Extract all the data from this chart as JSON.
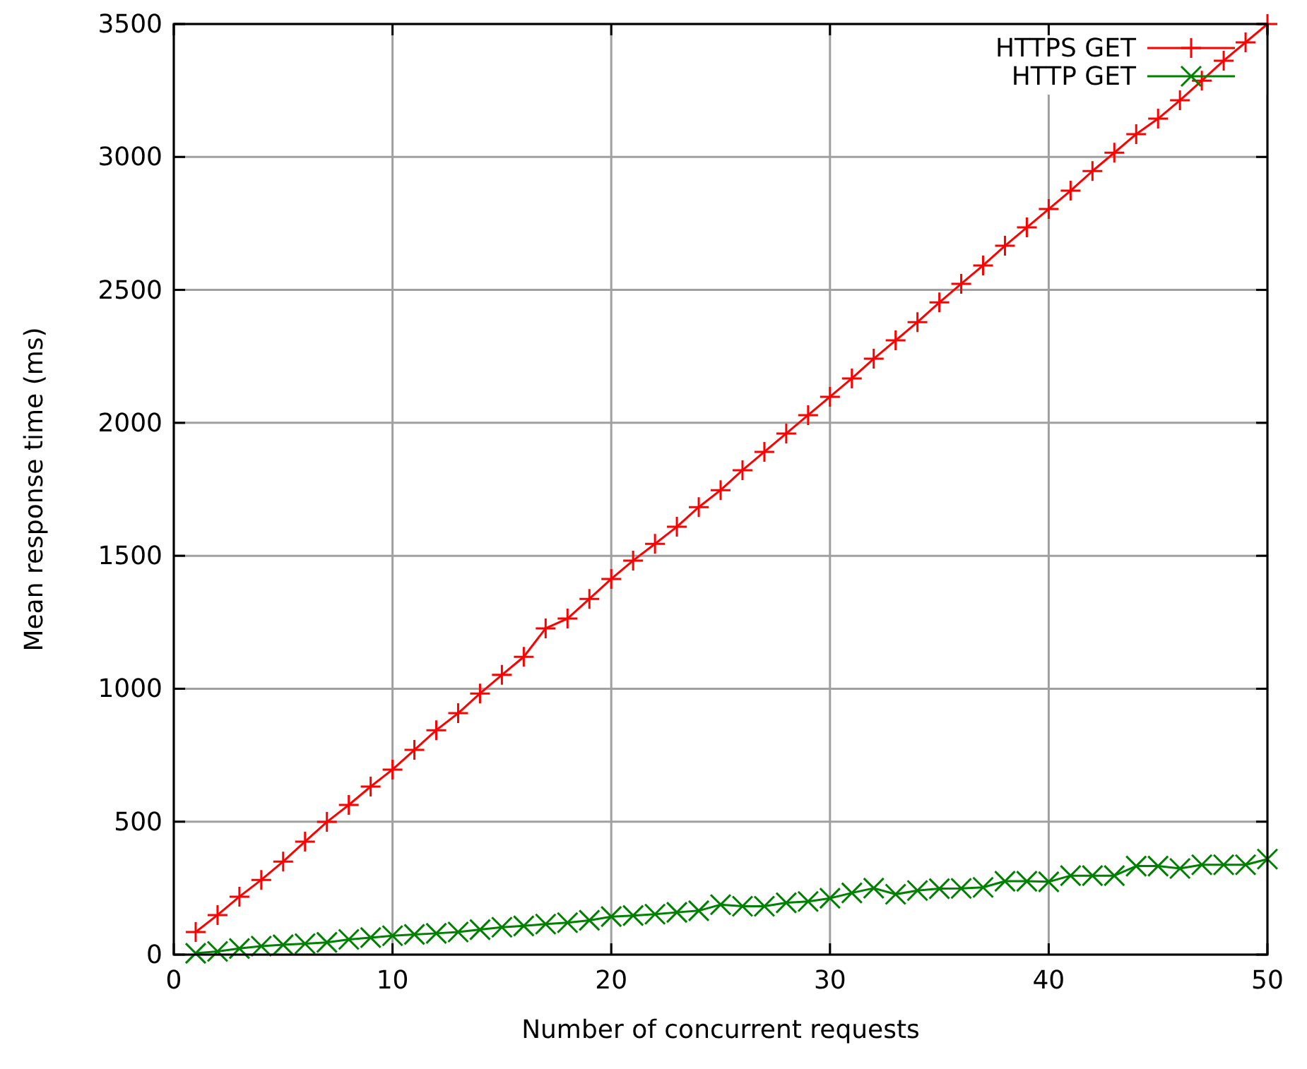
{
  "chart_data": {
    "type": "line",
    "xlabel": "Number of concurrent requests",
    "ylabel": "Mean response time (ms)",
    "x": [
      1,
      2,
      3,
      4,
      5,
      6,
      7,
      8,
      9,
      10,
      11,
      12,
      13,
      14,
      15,
      16,
      17,
      18,
      19,
      20,
      21,
      22,
      23,
      24,
      25,
      26,
      27,
      28,
      29,
      30,
      31,
      32,
      33,
      34,
      35,
      36,
      37,
      38,
      39,
      40,
      41,
      42,
      43,
      44,
      45,
      46,
      47,
      48,
      49,
      50
    ],
    "series": [
      {
        "name": "HTTPS GET",
        "color": "#ff0000",
        "marker": "cross",
        "values": [
          85,
          149,
          218,
          281,
          350,
          425,
          499,
          563,
          632,
          696,
          770,
          844,
          908,
          982,
          1052,
          1120,
          1227,
          1264,
          1338,
          1413,
          1482,
          1545,
          1609,
          1683,
          1747,
          1822,
          1891,
          1960,
          2029,
          2098,
          2167,
          2241,
          2310,
          2379,
          2453,
          2523,
          2592,
          2666,
          2735,
          2804,
          2873,
          2947,
          3016,
          3086,
          3144,
          3213,
          3287,
          3362,
          3431,
          3500
        ]
      },
      {
        "name": "HTTP GET",
        "color": "#008000",
        "marker": "cross",
        "values": [
          5,
          12,
          23,
          32,
          37,
          41,
          46,
          57,
          64,
          71,
          76,
          80,
          85,
          94,
          103,
          108,
          115,
          120,
          129,
          143,
          147,
          152,
          159,
          165,
          188,
          182,
          182,
          195,
          200,
          212,
          232,
          250,
          227,
          241,
          248,
          249,
          253,
          276,
          276,
          274,
          297,
          297,
          297,
          333,
          333,
          324,
          338,
          338,
          338,
          359
        ]
      }
    ],
    "xlim": [
      0,
      50
    ],
    "xticks": [
      0,
      10,
      20,
      30,
      40,
      50
    ],
    "ylim": [
      0,
      3500
    ],
    "yticks": [
      0,
      500,
      1000,
      1500,
      2000,
      2500,
      3000,
      3500
    ],
    "grid": true,
    "legend": "top right"
  }
}
